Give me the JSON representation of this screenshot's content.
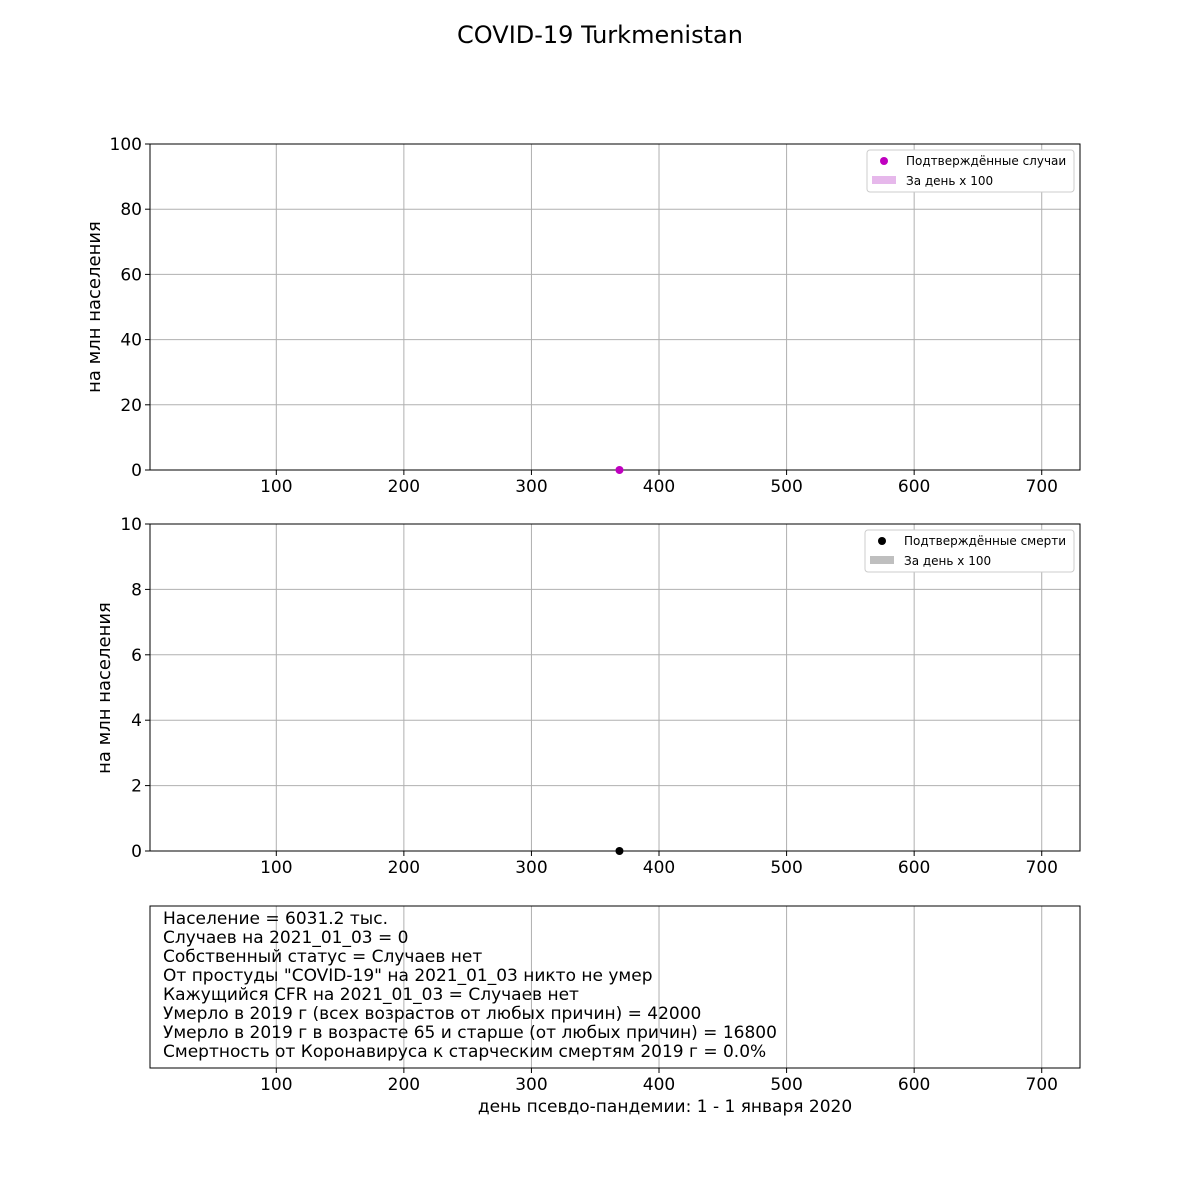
{
  "title": "COVID-19 Turkmenistan",
  "colors": {
    "cases_point": "#bf00bf",
    "cases_daily": "#e6b8eb",
    "deaths_point": "#000000",
    "deaths_daily": "#bfbfbf",
    "grid": "#b0b0b0"
  },
  "chart_data": [
    {
      "type": "scatter",
      "ylabel": "на млн населения",
      "xlim": [
        1,
        730
      ],
      "ylim": [
        0,
        100
      ],
      "x_ticks": [
        100,
        200,
        300,
        400,
        500,
        600,
        700
      ],
      "y_ticks": [
        0,
        20,
        40,
        60,
        80,
        100
      ],
      "grid": true,
      "legend_position": "top-right",
      "legend": [
        "Подтверждённые случаи",
        "За день x 100"
      ],
      "series": [
        {
          "name": "Подтверждённые случаи",
          "x": [
            369
          ],
          "y": [
            0
          ]
        },
        {
          "name": "За день x 100",
          "x": [],
          "y": []
        }
      ]
    },
    {
      "type": "scatter",
      "ylabel": "на млн населения",
      "xlim": [
        1,
        730
      ],
      "ylim": [
        0,
        10
      ],
      "x_ticks": [
        100,
        200,
        300,
        400,
        500,
        600,
        700
      ],
      "y_ticks": [
        0,
        2,
        4,
        6,
        8,
        10
      ],
      "grid": true,
      "legend_position": "top-right",
      "legend": [
        "Подтверждённые смерти",
        "За день x 100"
      ],
      "series": [
        {
          "name": "Подтверждённые смерти",
          "x": [
            369
          ],
          "y": [
            0
          ]
        },
        {
          "name": "За день x 100",
          "x": [],
          "y": []
        }
      ]
    },
    {
      "type": "table",
      "xlim": [
        1,
        730
      ],
      "x_ticks": [
        100,
        200,
        300,
        400,
        500,
        600,
        700
      ],
      "grid": true,
      "xlabel": "день псевдо-пандемии: 1 - 1 января 2020",
      "lines": [
        "Население = 6031.2 тыс.",
        "Случаев на 2021_01_03 = 0",
        "Собственный статус = Случаев нет",
        "От простуды \"COVID-19\" на 2021_01_03 никто не умер",
        "Кажущийся CFR на 2021_01_03 = Случаев нет",
        "Умерло в 2019 г (всех возрастов от любых причин) = 42000",
        "Умерло в 2019 г в возрасте 65 и старше (от любых причин) = 16800",
        "Смертность от Коронавируса к старческим смертям 2019 г = 0.0%"
      ]
    }
  ]
}
